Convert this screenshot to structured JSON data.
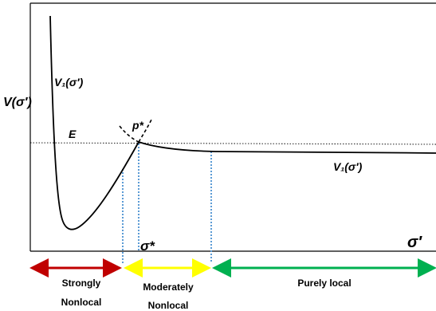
{
  "axis": {
    "y_label": "V(σ′)",
    "x_label": "σ′",
    "sigma_star": "σ*"
  },
  "curve_labels": {
    "v1_left": "V₁(σ′)",
    "v1_right": "V₁(σ′)",
    "energy": "E",
    "p_star": "p*"
  },
  "regions": [
    {
      "line1": "Strongly",
      "line2": "Nonlocal",
      "color": "#c00000"
    },
    {
      "line1": "Moderately",
      "line2": "Nonlocal",
      "color": "#ffff00"
    },
    {
      "line1": "Purely local",
      "line2": "",
      "color": "#00b050"
    }
  ],
  "colors": {
    "curve": "#000000",
    "dotted_guides": "#5b9bd5",
    "energy_line": "#000000"
  }
}
